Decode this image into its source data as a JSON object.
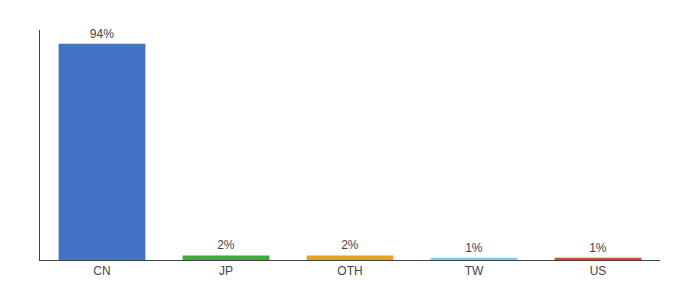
{
  "chart_data": {
    "type": "bar",
    "categories": [
      "CN",
      "JP",
      "OTH",
      "TW",
      "US"
    ],
    "values": [
      94,
      2,
      2,
      1,
      1
    ],
    "value_labels": [
      "94%",
      "2%",
      "2%",
      "1%",
      "1%"
    ],
    "colors": [
      "#4472c4",
      "#3daa3d",
      "#e8a020",
      "#7ecbf0",
      "#c0522a"
    ],
    "data_labels": true,
    "ylim": [
      0,
      100
    ],
    "grid": false,
    "tick_labels": "x"
  }
}
